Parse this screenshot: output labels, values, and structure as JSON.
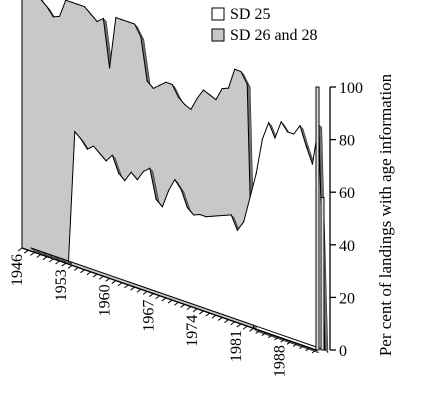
{
  "chart_data": {
    "type": "area",
    "title": "",
    "xlabel": "",
    "ylabel": "Per cent of landings with age information",
    "ylim": [
      0,
      100
    ],
    "y_ticks": [
      0,
      20,
      40,
      60,
      80,
      100
    ],
    "x_tick_labels": [
      "1946",
      "1953",
      "1960",
      "1967",
      "1974",
      "1981",
      "1988"
    ],
    "legend_position": "top-right",
    "grid": false,
    "three_d": true,
    "colors": {
      "sd25": "#ffffff",
      "sd2628": "#c8c8c8",
      "edge": "#000000"
    },
    "x": [
      1946,
      1947,
      1948,
      1949,
      1950,
      1951,
      1952,
      1953,
      1954,
      1955,
      1956,
      1957,
      1958,
      1959,
      1960,
      1961,
      1962,
      1963,
      1964,
      1965,
      1966,
      1967,
      1968,
      1969,
      1970,
      1971,
      1972,
      1973,
      1974,
      1975,
      1976,
      1977,
      1978,
      1979,
      1980,
      1981,
      1982,
      1983,
      1984,
      1985,
      1986,
      1987,
      1988,
      1989,
      1990,
      1991,
      1992,
      1993
    ],
    "series": [
      {
        "name": "SD 25",
        "values": [
          0,
          0,
          0,
          0,
          0,
          0,
          0,
          50,
          48,
          45,
          47,
          45,
          43,
          46,
          40,
          38,
          42,
          40,
          44,
          46,
          35,
          33,
          40,
          45,
          42,
          36,
          34,
          35,
          35,
          36,
          37,
          38,
          39,
          34,
          38,
          48,
          58,
          72,
          79,
          74,
          81,
          78,
          78,
          82,
          75,
          69,
          85,
          0
        ]
      },
      {
        "name": "SD 26 and 28",
        "values": [
          100,
          100,
          100,
          97,
          95,
          92,
          93,
          100,
          100,
          100,
          100,
          98,
          96,
          98,
          80,
          100,
          100,
          100,
          100,
          96,
          80,
          78,
          80,
          82,
          82,
          78,
          76,
          75,
          80,
          84,
          83,
          82,
          87,
          88,
          96,
          96,
          92,
          0,
          0,
          0,
          0,
          0,
          0,
          0,
          0,
          0,
          0,
          0
        ]
      }
    ]
  }
}
